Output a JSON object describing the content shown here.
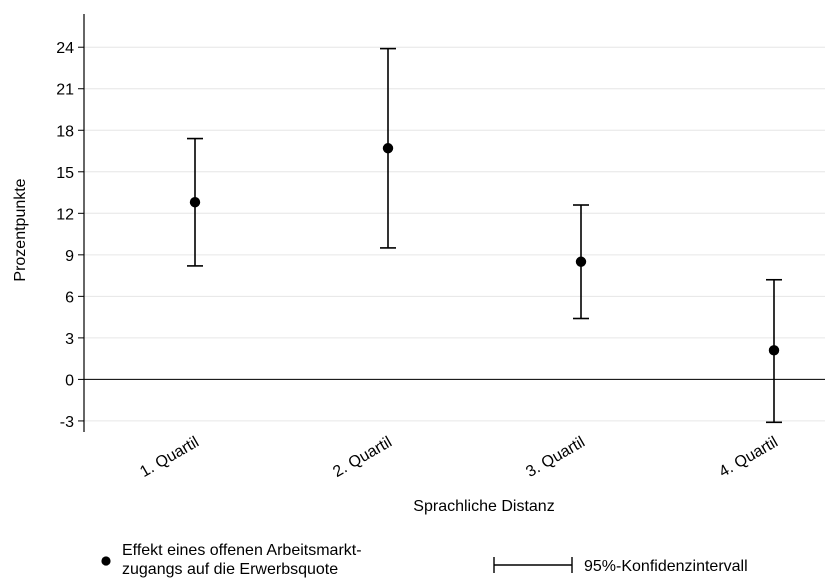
{
  "chart_data": {
    "type": "errorbar",
    "xlabel": "Sprachliche Distanz",
    "ylabel": "Prozentpunkte",
    "categories": [
      "1. Quartil",
      "2. Quartil",
      "3. Quartil",
      "4. Quartil"
    ],
    "ylim": [
      -3.8,
      26.4
    ],
    "yticks": [
      -3,
      0,
      3,
      6,
      9,
      12,
      15,
      18,
      21,
      24
    ],
    "grid": true,
    "zero_line": true,
    "series": [
      {
        "name": "Effekt eines offenen Arbeitsmarkt-\nzugangs auf die Erwerbsquote",
        "name_lines": [
          "Effekt eines offenen Arbeitsmarkt-",
          "zugangs auf die Erwerbsquote"
        ],
        "values": [
          12.8,
          16.7,
          8.5,
          2.1
        ],
        "ci_low": [
          8.2,
          9.5,
          4.4,
          -3.1
        ],
        "ci_high": [
          17.4,
          23.9,
          12.6,
          7.2
        ]
      }
    ],
    "legend": {
      "position": "bottom",
      "point_label_lines": [
        "Effekt eines offenen Arbeitsmarkt-",
        "zugangs auf die Erwerbsquote"
      ],
      "ci_label": "95%-Konfidenzintervall"
    },
    "colors": {
      "marker": "#000000",
      "grid": "#e6e6e6",
      "axis": "#000000"
    }
  }
}
